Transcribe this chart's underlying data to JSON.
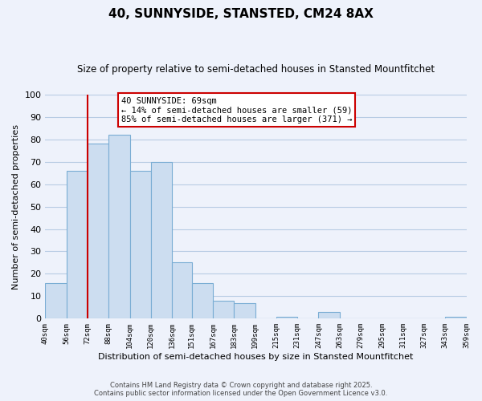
{
  "title": "40, SUNNYSIDE, STANSTED, CM24 8AX",
  "subtitle": "Size of property relative to semi-detached houses in Stansted Mountfitchet",
  "xlabel": "Distribution of semi-detached houses by size in Stansted Mountfitchet",
  "ylabel": "Number of semi-detached properties",
  "bar_color": "#ccddf0",
  "bar_edge_color": "#7aadd4",
  "grid_color": "#b8cce4",
  "background_color": "#eef2fb",
  "annotation_box_color": "#ffffff",
  "annotation_box_edge": "#cc0000",
  "red_line_color": "#cc0000",
  "red_line_x": 72,
  "annotation_line1": "40 SUNNYSIDE: 69sqm",
  "annotation_line2": "← 14% of semi-detached houses are smaller (59)",
  "annotation_line3": "85% of semi-detached houses are larger (371) →",
  "footer1": "Contains HM Land Registry data © Crown copyright and database right 2025.",
  "footer2": "Contains public sector information licensed under the Open Government Licence v3.0.",
  "bins": [
    40,
    56,
    72,
    88,
    104,
    120,
    136,
    151,
    167,
    183,
    199,
    215,
    231,
    247,
    263,
    279,
    295,
    311,
    327,
    343,
    359
  ],
  "counts": [
    16,
    66,
    78,
    82,
    66,
    70,
    25,
    16,
    8,
    7,
    0,
    1,
    0,
    3,
    0,
    0,
    0,
    0,
    0,
    1
  ],
  "ylim": [
    0,
    100
  ],
  "yticks": [
    0,
    10,
    20,
    30,
    40,
    50,
    60,
    70,
    80,
    90,
    100
  ]
}
